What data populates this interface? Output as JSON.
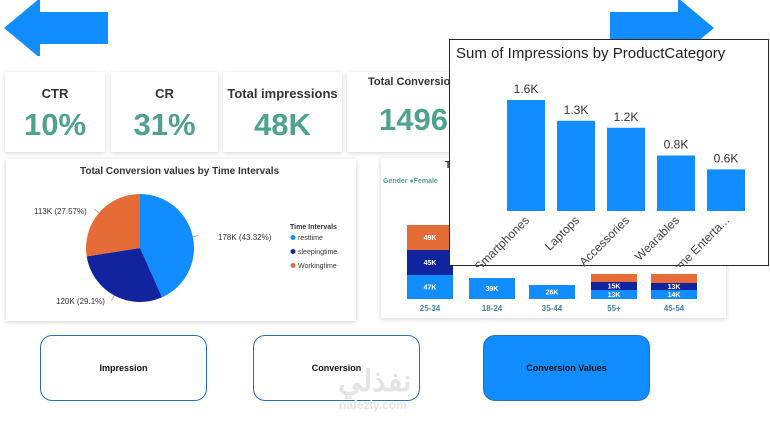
{
  "colors": {
    "primary": "#118dff",
    "dark_blue": "#12239e",
    "orange": "#e66c37",
    "kpi_green": "#4fa38e"
  },
  "kpis": [
    {
      "label": "CTR",
      "value": "10%"
    },
    {
      "label": "CR",
      "value": "31%"
    },
    {
      "label": "Total impressions",
      "value": "48K"
    },
    {
      "label": "Total Conversion",
      "value": "1496"
    }
  ],
  "pie": {
    "title": "Total Conversion values by Time Intervals",
    "legend_title": "Time Intervals",
    "slices": [
      {
        "name": "resttime",
        "value": 178,
        "label": "178K (43.32%)",
        "color": "#118dff"
      },
      {
        "name": "sleepingtime",
        "value": 120,
        "label": "120K (29.1%)",
        "color": "#12239e"
      },
      {
        "name": "Workingtime",
        "value": 113,
        "label": "113K (27.57%)",
        "color": "#e66c37"
      }
    ]
  },
  "stacked": {
    "title_fragment": "T",
    "legend_label": "Gender",
    "legend_item": "Female",
    "categories": [
      "25-34",
      "18-24",
      "35-44",
      "55+",
      "45-54"
    ],
    "visible_labels": [
      [
        "47K",
        "45K",
        "49K"
      ],
      [
        "39K"
      ],
      [
        "26K"
      ],
      [
        "13K",
        "15K"
      ],
      [
        "14K",
        "13K"
      ]
    ]
  },
  "chart_data": {
    "type": "bar",
    "title": "Sum of Impressions by ProductCategory",
    "categories": [
      "Smartphones",
      "Laptops",
      "Accessories",
      "Wearables",
      "Home Enterta..."
    ],
    "values": [
      1.6,
      1.3,
      1.2,
      0.8,
      0.6
    ],
    "value_labels": [
      "1.6K",
      "1.3K",
      "1.2K",
      "0.8K",
      "0.6K"
    ],
    "ylim": [
      0,
      1.6
    ],
    "color": "#118dff",
    "grid": false
  },
  "buttons": [
    {
      "label": "Impression"
    },
    {
      "label": "Conversion"
    },
    {
      "label": "Conversion Values"
    }
  ],
  "watermark": {
    "arabic": "نفذلي",
    "latin": "nafezly.com"
  }
}
